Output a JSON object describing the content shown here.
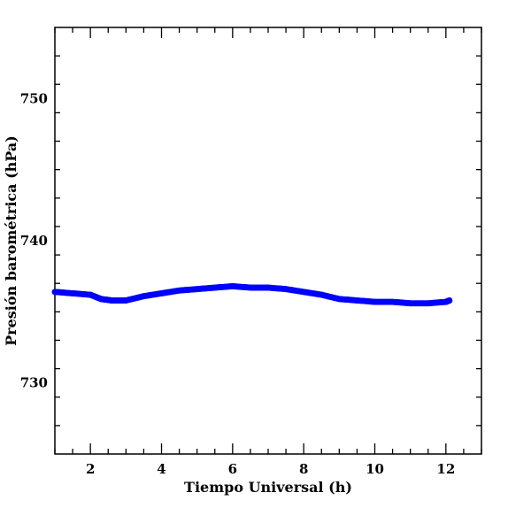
{
  "chart_data": {
    "type": "scatter",
    "title": "",
    "xlabel": "Tiempo Universal (h)",
    "ylabel": "Presión barométrica (hPa)",
    "xlim": [
      1,
      13
    ],
    "ylim": [
      725,
      755
    ],
    "xticks_major": [
      2,
      4,
      6,
      8,
      10,
      12
    ],
    "yticks_major": [
      730,
      740,
      750
    ],
    "xtick_minor_step": 0.5,
    "ytick_minor_step": 2,
    "grid": false,
    "legend": "none",
    "marker_color": "#0000ff",
    "series": [
      {
        "x": [
          1.0,
          1.5,
          2.0,
          2.3,
          2.6,
          3.0,
          3.5,
          4.0,
          4.5,
          5.0,
          5.5,
          6.0,
          6.5,
          7.0,
          7.5,
          8.0,
          8.5,
          9.0,
          9.5,
          10.0,
          10.5,
          11.0,
          11.5,
          12.0,
          12.1
        ],
        "y": [
          736.4,
          736.3,
          736.2,
          735.9,
          735.8,
          735.8,
          736.1,
          736.3,
          736.5,
          736.6,
          736.7,
          736.8,
          736.7,
          736.7,
          736.6,
          736.4,
          736.2,
          735.9,
          735.8,
          735.7,
          735.7,
          735.6,
          735.6,
          735.7,
          735.8
        ]
      }
    ]
  }
}
